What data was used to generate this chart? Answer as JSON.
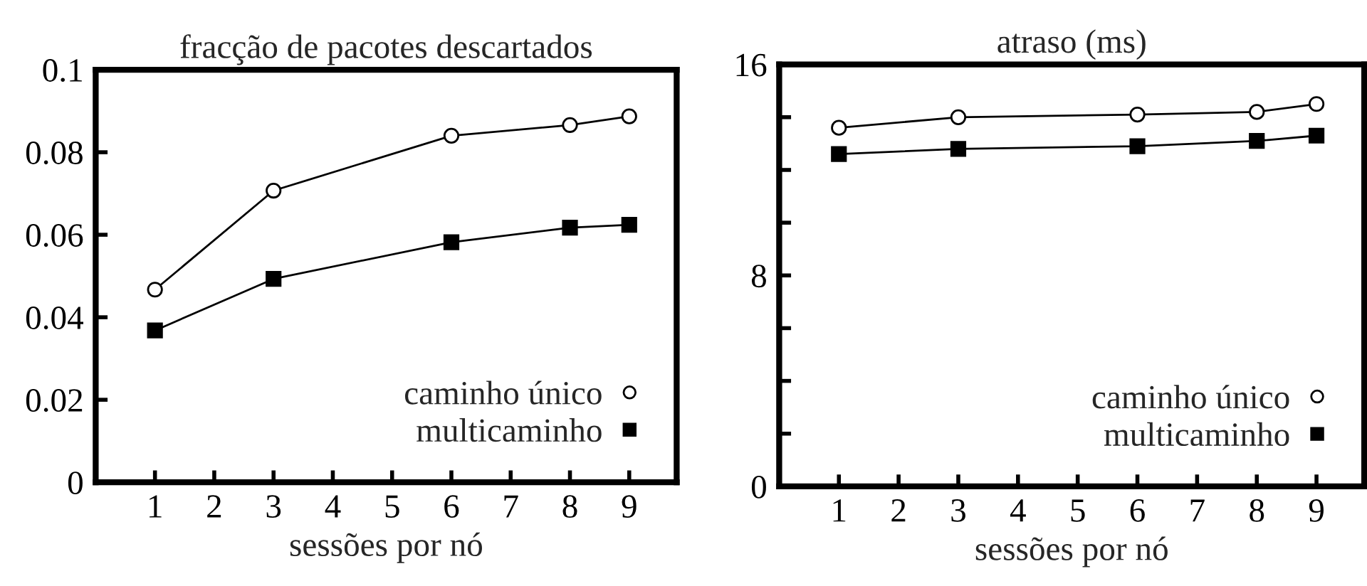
{
  "chart_data": [
    {
      "type": "line",
      "title": "fracção de pacotes descartados",
      "xlabel": "sessões por nó",
      "x": [
        1,
        3,
        6,
        8,
        9
      ],
      "xlim": [
        0,
        9.8
      ],
      "xticks": [
        1,
        2,
        3,
        4,
        5,
        6,
        7,
        8,
        9
      ],
      "ylim": [
        0,
        0.1
      ],
      "yticks": [
        0,
        0.02,
        0.04,
        0.06,
        0.08,
        0.1
      ],
      "grid": false,
      "legend": "bottom right",
      "line_style": "solid",
      "series": [
        {
          "name": "caminho único",
          "color": "#000000",
          "marker": "circle",
          "values": [
            0.0467,
            0.0707,
            0.084,
            0.0866,
            0.0887
          ]
        },
        {
          "name": "multicaminho",
          "color": "#000000",
          "marker": "square",
          "values": [
            0.0368,
            0.0493,
            0.0582,
            0.0617,
            0.0624
          ]
        }
      ]
    },
    {
      "type": "line",
      "title": "atraso (ms)",
      "xlabel": "sessões por nó",
      "x": [
        1,
        3,
        6,
        8,
        9
      ],
      "xlim": [
        0,
        9.8
      ],
      "xticks": [
        1,
        2,
        3,
        4,
        5,
        6,
        7,
        8,
        9
      ],
      "ylim": [
        0,
        16
      ],
      "yticks": [
        0,
        {
          "value": 2,
          "label": null
        },
        {
          "value": 4,
          "label": null
        },
        {
          "value": 6,
          "label": null
        },
        8,
        {
          "value": 10,
          "label": null
        },
        {
          "value": 12,
          "label": null
        },
        {
          "value": 14,
          "label": null
        },
        16
      ],
      "grid": false,
      "legend": "bottom right",
      "line_style": "solid",
      "series": [
        {
          "name": "caminho único",
          "color": "#000000",
          "marker": "circle",
          "values": [
            13.6,
            14.0,
            14.1,
            14.2,
            14.5
          ]
        },
        {
          "name": "multicaminho",
          "color": "#000000",
          "marker": "square",
          "values": [
            12.6,
            12.8,
            12.9,
            13.1,
            13.3
          ]
        }
      ]
    }
  ]
}
